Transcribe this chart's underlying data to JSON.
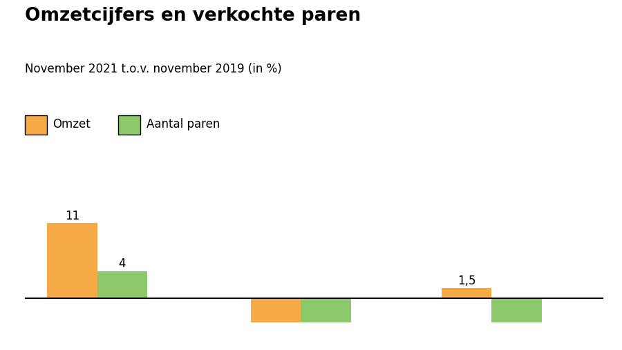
{
  "title": "Omzetcijfers en verkochte paren",
  "subtitle": "November 2021 t.o.v. november 2019 (in %)",
  "legend_labels": [
    "Omzet",
    "Aantal paren"
  ],
  "colors": [
    "#F5A947",
    "#8CC96A"
  ],
  "omzet_values": [
    11,
    -3.5,
    1.5
  ],
  "paren_values": [
    4,
    -3.5,
    -3.5
  ],
  "ylim": [
    -5.5,
    16
  ],
  "bar_width": 0.38,
  "group_positions": [
    0.55,
    2.1,
    3.55
  ],
  "xlim": [
    0,
    4.4
  ],
  "background_color": "#ffffff",
  "title_fontsize": 19,
  "subtitle_fontsize": 12,
  "legend_fontsize": 12,
  "value_fontsize": 12,
  "value_labels": [
    {
      "x_idx": 0,
      "bar": "omzet",
      "label": "11"
    },
    {
      "x_idx": 0,
      "bar": "paren",
      "label": "4"
    },
    {
      "x_idx": 2,
      "bar": "omzet",
      "label": "1,5"
    }
  ]
}
